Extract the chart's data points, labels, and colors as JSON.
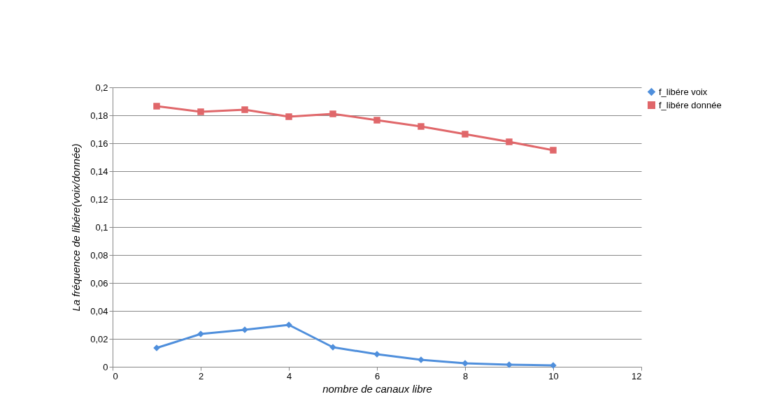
{
  "chart_data": {
    "type": "line",
    "xlabel": "nombre de canaux libre",
    "ylabel": "La fréquence de libére(voix/donnée)",
    "x": [
      1,
      2,
      3,
      4,
      5,
      6,
      7,
      8,
      9,
      10
    ],
    "series": [
      {
        "name": "f_libére voix",
        "color": "#4f8fdc",
        "marker": "diamond",
        "values": [
          0.0135,
          0.0235,
          0.0265,
          0.03,
          0.014,
          0.009,
          0.005,
          0.0025,
          0.0015,
          0.001
        ]
      },
      {
        "name": "f_libére donnée",
        "color": "#e0676a",
        "marker": "square",
        "values": [
          0.1865,
          0.1825,
          0.184,
          0.179,
          0.181,
          0.1765,
          0.172,
          0.1665,
          0.161,
          0.155
        ]
      }
    ],
    "xlim": [
      0,
      12
    ],
    "xticks": [
      0,
      2,
      4,
      6,
      8,
      10,
      12
    ],
    "ylim": [
      0,
      0.2
    ],
    "yticks": [
      0,
      {
        "value": 0.02,
        "label": "0,02"
      },
      {
        "value": 0.04,
        "label": "0,04"
      },
      {
        "value": 0.06,
        "label": "0,06"
      },
      {
        "value": 0.08,
        "label": "0,08"
      },
      {
        "value": 0.1,
        "label": "0,1"
      },
      {
        "value": 0.12,
        "label": "0,12"
      },
      {
        "value": 0.14,
        "label": "0,14"
      },
      {
        "value": 0.16,
        "label": "0,16"
      },
      {
        "value": 0.18,
        "label": "0,18"
      },
      {
        "value": 0.2,
        "label": "0,2"
      }
    ],
    "grid": "y",
    "legend": "right",
    "line_style": "solid"
  }
}
